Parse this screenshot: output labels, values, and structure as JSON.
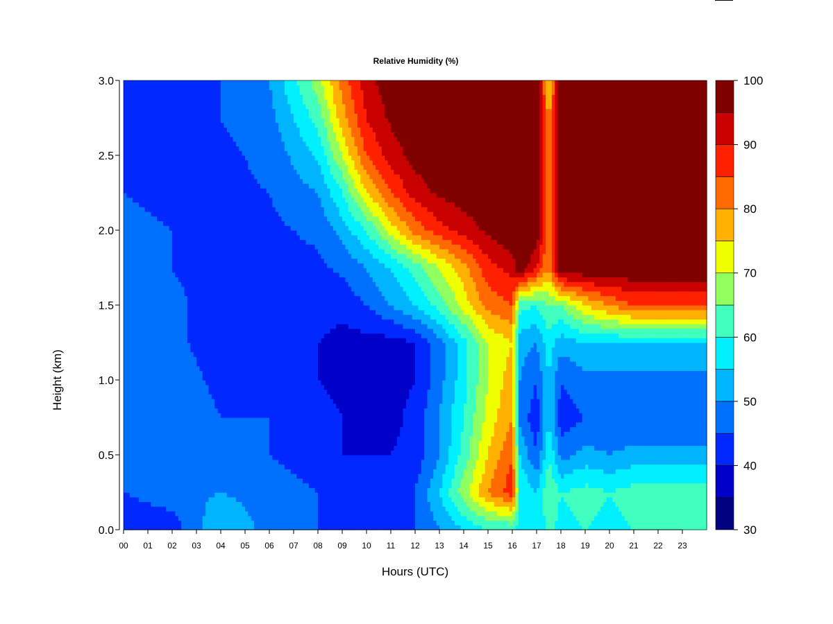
{
  "chart_data": {
    "type": "heatmap",
    "title": "Relative Humidity (%)",
    "xlabel": "Hours (UTC)",
    "ylabel": "Height (km)",
    "xlim": [
      0,
      24
    ],
    "ylim": [
      0.0,
      3.0
    ],
    "x_ticks": [
      "00",
      "01",
      "02",
      "03",
      "04",
      "05",
      "06",
      "07",
      "08",
      "09",
      "10",
      "11",
      "12",
      "13",
      "14",
      "15",
      "16",
      "17",
      "18",
      "19",
      "20",
      "21",
      "22",
      "23"
    ],
    "y_ticks": [
      "0.0",
      "0.5",
      "1.0",
      "1.5",
      "2.0",
      "2.5",
      "3.0"
    ],
    "heights_km": [
      0.0,
      0.25,
      0.5,
      0.75,
      1.0,
      1.25,
      1.5,
      1.75,
      2.0,
      2.25,
      2.5,
      2.75,
      3.0
    ],
    "hours": [
      0,
      2,
      4,
      6,
      8,
      9,
      10,
      11,
      12,
      13,
      14,
      15,
      16,
      16.3,
      17,
      17.5,
      18,
      19,
      20,
      21,
      22,
      23,
      24
    ],
    "values": [
      [
        40,
        42,
        55,
        48,
        45,
        45,
        45,
        45,
        45,
        50,
        55,
        60,
        60,
        58,
        55,
        62,
        58,
        60,
        58,
        60,
        60,
        60,
        60
      ],
      [
        45,
        48,
        50,
        48,
        45,
        44,
        43,
        43,
        45,
        55,
        68,
        80,
        88,
        60,
        55,
        65,
        60,
        62,
        60,
        62,
        62,
        62,
        62
      ],
      [
        47,
        48,
        46,
        45,
        42,
        40,
        40,
        40,
        42,
        50,
        62,
        75,
        85,
        55,
        45,
        60,
        48,
        52,
        50,
        52,
        52,
        52,
        52
      ],
      [
        48,
        48,
        45,
        45,
        42,
        40,
        38,
        38,
        42,
        50,
        60,
        72,
        80,
        48,
        42,
        55,
        42,
        45,
        45,
        45,
        45,
        45,
        45
      ],
      [
        47,
        47,
        44,
        43,
        40,
        38,
        38,
        38,
        40,
        48,
        58,
        70,
        78,
        50,
        45,
        55,
        45,
        48,
        48,
        48,
        48,
        48,
        48
      ],
      [
        47,
        46,
        43,
        43,
        40,
        38,
        38,
        38,
        40,
        48,
        58,
        70,
        75,
        52,
        50,
        58,
        52,
        55,
        55,
        55,
        55,
        55,
        55
      ],
      [
        47,
        46,
        43,
        43,
        42,
        42,
        45,
        50,
        55,
        62,
        72,
        82,
        85,
        62,
        60,
        65,
        65,
        75,
        80,
        85,
        85,
        85,
        85
      ],
      [
        46,
        45,
        43,
        43,
        44,
        46,
        50,
        55,
        62,
        70,
        78,
        88,
        92,
        100,
        90,
        80,
        100,
        100,
        100,
        100,
        100,
        100,
        100
      ],
      [
        46,
        45,
        43,
        44,
        46,
        52,
        60,
        72,
        82,
        88,
        92,
        96,
        100,
        100,
        100,
        80,
        100,
        100,
        100,
        100,
        100,
        100,
        100
      ],
      [
        45,
        44,
        44,
        45,
        50,
        60,
        75,
        85,
        92,
        96,
        98,
        100,
        100,
        100,
        100,
        82,
        100,
        100,
        100,
        100,
        100,
        100,
        100
      ],
      [
        45,
        44,
        44,
        46,
        56,
        70,
        85,
        92,
        97,
        100,
        100,
        100,
        100,
        100,
        100,
        80,
        100,
        100,
        100,
        100,
        100,
        100,
        100
      ],
      [
        45,
        44,
        45,
        48,
        62,
        78,
        90,
        96,
        100,
        100,
        100,
        100,
        100,
        100,
        100,
        78,
        100,
        100,
        100,
        100,
        100,
        100,
        100
      ],
      [
        44,
        44,
        45,
        50,
        68,
        82,
        93,
        98,
        100,
        100,
        100,
        100,
        100,
        100,
        100,
        75,
        100,
        100,
        100,
        100,
        100,
        100,
        100
      ]
    ],
    "colorbar": {
      "levels": [
        30,
        35,
        40,
        45,
        50,
        55,
        60,
        65,
        70,
        75,
        80,
        85,
        90,
        95,
        100
      ],
      "colors": [
        "#000080",
        "#0000c8",
        "#0028ff",
        "#0070ff",
        "#00b4ff",
        "#00f0ff",
        "#40ffbf",
        "#90ff60",
        "#f0ff00",
        "#ffb000",
        "#ff6a00",
        "#ff2000",
        "#c80000",
        "#800000"
      ],
      "tick_labels": [
        "30",
        "40",
        "50",
        "60",
        "70",
        "80",
        "90",
        "100"
      ]
    }
  }
}
